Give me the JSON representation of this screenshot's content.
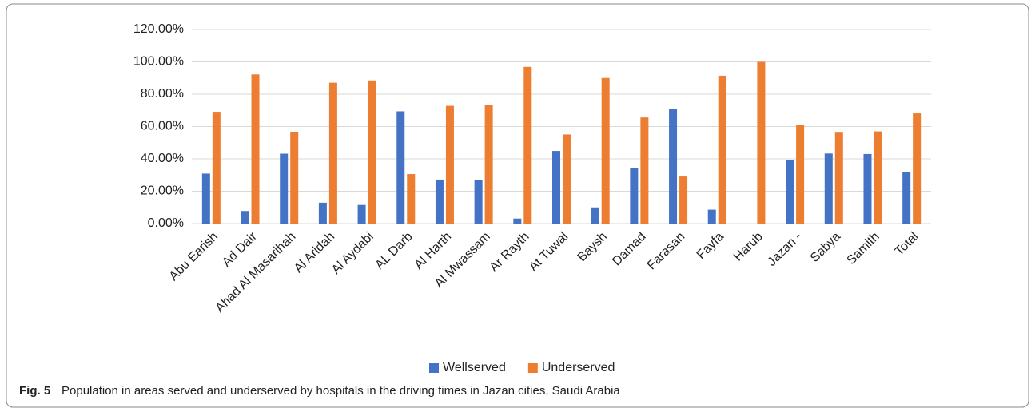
{
  "chart_data": {
    "type": "bar",
    "caption_label": "Fig. 5",
    "caption": "Population in areas served and underserved by hospitals in the driving times in Jazan cities, Saudi Arabia",
    "categories": [
      "Abu Earish",
      "Ad Dair",
      "Ahad Al Masarihah",
      "Al Aridah",
      "Al Aydabi",
      "AL Darb",
      "Al Harth",
      "Al Mwassam",
      "Ar Rayth",
      "At Tuwal",
      "Baysh",
      "Damad",
      "Farasan",
      "Fayfa",
      "Harub",
      "Jazan -",
      "Sabya",
      "Samith",
      "Total"
    ],
    "series": [
      {
        "name": "Wellserved",
        "color": "#4472c4",
        "values": [
          30.9,
          7.8,
          43.2,
          12.9,
          11.5,
          69.4,
          27.2,
          26.8,
          3.1,
          44.9,
          10.0,
          34.4,
          70.9,
          8.6,
          0,
          39.2,
          43.3,
          43.0,
          31.9
        ]
      },
      {
        "name": "Underserved",
        "color": "#ed7d31",
        "values": [
          69.1,
          92.2,
          56.8,
          87.1,
          88.5,
          30.6,
          72.8,
          73.2,
          96.9,
          55.1,
          90.0,
          65.6,
          29.1,
          91.4,
          100,
          60.8,
          56.7,
          57.0,
          68.1
        ]
      }
    ],
    "ylim": [
      0,
      120
    ],
    "yticks": [
      {
        "value": 0,
        "label": "0.00%"
      },
      {
        "value": 20,
        "label": "20.00%"
      },
      {
        "value": 40,
        "label": "40.00%"
      },
      {
        "value": 60,
        "label": "60.00%"
      },
      {
        "value": 80,
        "label": "80.00%"
      },
      {
        "value": 100,
        "label": "100.00%"
      },
      {
        "value": 120,
        "label": "120.00%"
      }
    ],
    "grid": true,
    "legend": "bottom"
  }
}
